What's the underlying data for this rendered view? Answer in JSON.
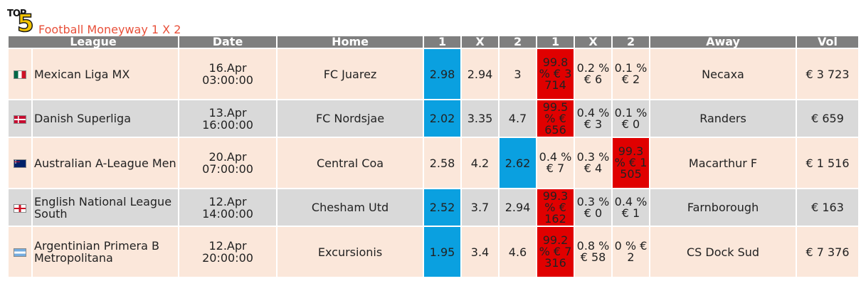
{
  "logo": {
    "top": "TOP",
    "five": "5"
  },
  "title": "Football Moneyway 1 X 2",
  "headers": [
    "League",
    "Date",
    "Home",
    "1",
    "X",
    "2",
    "1",
    "X",
    "2",
    "Away",
    "Vol"
  ],
  "rows": [
    {
      "flag": "mexico-flag-icon",
      "league": "Mexican Liga MX",
      "date": "16.Apr",
      "time": "03:00:00",
      "home": "FC Juarez",
      "o1": "2.98",
      "ox": "2.94",
      "o2": "3",
      "m1": "99.8 % € 3 714",
      "mx": "0.2 % € 6",
      "m2": "0.1 % € 2",
      "away": "Necaxa",
      "vol": "€ 3 723"
    },
    {
      "flag": "denmark-flag-icon",
      "league": "Danish Superliga",
      "date": "13.Apr",
      "time": "16:00:00",
      "home": "FC Nordsjae",
      "o1": "2.02",
      "ox": "3.35",
      "o2": "4.7",
      "m1": "99.5 % € 656",
      "mx": "0.4 % € 3",
      "m2": "0.1 % € 0",
      "away": "Randers",
      "vol": "€ 659"
    },
    {
      "flag": "australia-flag-icon",
      "league": "Australian A-League Men",
      "date": "20.Apr",
      "time": "07:00:00",
      "home": "Central Coa",
      "o1": "2.58",
      "ox": "4.2",
      "o2": "2.62",
      "m1": "0.4 % € 7",
      "mx": "0.3 % € 4",
      "m2": "99.3 % € 1 505",
      "away": "Macarthur F",
      "vol": "€ 1 516"
    },
    {
      "flag": "england-flag-icon",
      "league": "English National League South",
      "date": "12.Apr",
      "time": "14:00:00",
      "home": "Chesham Utd",
      "o1": "2.52",
      "ox": "3.7",
      "o2": "2.94",
      "m1": "99.3 % € 162",
      "mx": "0.3 % € 0",
      "m2": "0.4 % € 1",
      "away": "Farnborough",
      "vol": "€ 163"
    },
    {
      "flag": "argentina-flag-icon",
      "league": "Argentinian Primera B Metropolitana",
      "date": "12.Apr",
      "time": "20:00:00",
      "home": "Excursionis",
      "o1": "1.95",
      "ox": "3.4",
      "o2": "4.6",
      "m1": "99.2 % € 7 316",
      "mx": "0.8 % € 58",
      "m2": "0 % € 2",
      "away": "CS Dock Sud",
      "vol": "€ 7 376"
    }
  ],
  "colors": {
    "header": "#7f7f7f",
    "row_light": "#fbe7da",
    "row_grey": "#d9d9d9",
    "odds_highlight": "#0aa0e0",
    "moneyway_highlight": "#e00000",
    "title": "#e8503a"
  }
}
